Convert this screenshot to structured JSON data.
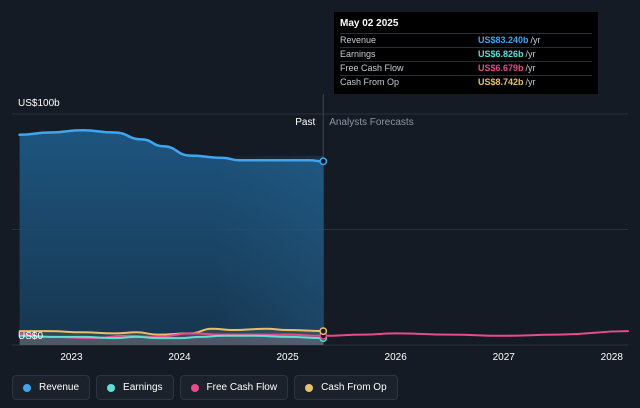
{
  "chart_data": {
    "type": "area",
    "y_top_label": "US$100b",
    "y_bottom_label": "US$0",
    "ylim": [
      0,
      100
    ],
    "xlim": [
      2022.45,
      2028.15
    ],
    "x_ticks": [
      2023,
      2024,
      2025,
      2026,
      2027,
      2028
    ],
    "x_tick_labels": [
      "2023",
      "2024",
      "2025",
      "2026",
      "2027",
      "2028"
    ],
    "divider_label_past": "Past",
    "divider_label_forecast": "Analysts Forecasts",
    "divider_x": 2025.33,
    "series": [
      {
        "name": "Revenue",
        "color": "#3ea6f0",
        "x": [
          2022.52,
          2022.8,
          2023.1,
          2023.4,
          2023.65,
          2023.85,
          2024.1,
          2024.4,
          2024.55,
          2024.75,
          2025.0,
          2025.2,
          2025.33
        ],
        "y": [
          91,
          92,
          93,
          92,
          89,
          86,
          82,
          81,
          80,
          80,
          80,
          80,
          79.5
        ]
      },
      {
        "name": "Earnings",
        "color": "#5ce0d6",
        "x": [
          2022.52,
          2022.8,
          2023.1,
          2023.4,
          2023.6,
          2023.8,
          2024.0,
          2024.2,
          2024.4,
          2024.7,
          2025.0,
          2025.33
        ],
        "y": [
          4,
          3.5,
          3.5,
          3,
          3.5,
          3,
          3,
          3.5,
          4,
          4,
          3.5,
          3
        ]
      },
      {
        "name": "Free Cash Flow",
        "color": "#e64b8c",
        "x": [
          2022.52,
          2022.8,
          2023.2,
          2023.5,
          2023.8,
          2024.1,
          2024.4,
          2024.7,
          2025.0,
          2025.33,
          2025.7,
          2026.0,
          2026.5,
          2027.0,
          2027.5,
          2028.15
        ],
        "y": [
          5,
          3.5,
          3,
          4,
          3.5,
          5,
          4.5,
          4.5,
          4.5,
          4,
          4.5,
          5,
          4.5,
          4,
          4.5,
          6
        ]
      },
      {
        "name": "Cash From Op",
        "color": "#e8c06a",
        "x": [
          2022.52,
          2022.8,
          2023.1,
          2023.4,
          2023.6,
          2023.8,
          2024.1,
          2024.3,
          2024.5,
          2024.8,
          2025.0,
          2025.33
        ],
        "y": [
          6,
          6,
          5.5,
          5,
          5.5,
          4.5,
          5,
          7,
          6.5,
          7,
          6.5,
          6
        ]
      }
    ]
  },
  "tooltip": {
    "date": "May 02 2025",
    "unit": "/yr",
    "rows": [
      {
        "label": "Revenue",
        "value": "US$83.240b",
        "color": "#3ea6f0"
      },
      {
        "label": "Earnings",
        "value": "US$6.826b",
        "color": "#5ce0d6"
      },
      {
        "label": "Free Cash Flow",
        "value": "US$6.679b",
        "color": "#e64b8c"
      },
      {
        "label": "Cash From Op",
        "value": "US$8.742b",
        "color": "#e8c06a"
      }
    ]
  },
  "legend": [
    {
      "label": "Revenue",
      "color": "#3ea6f0"
    },
    {
      "label": "Earnings",
      "color": "#5ce0d6"
    },
    {
      "label": "Free Cash Flow",
      "color": "#e64b8c"
    },
    {
      "label": "Cash From Op",
      "color": "#e8c06a"
    }
  ]
}
